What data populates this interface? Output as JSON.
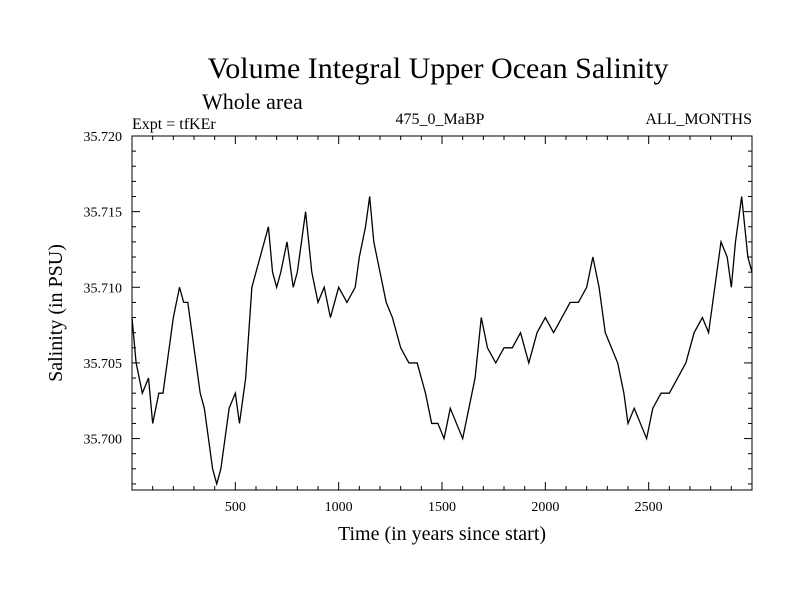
{
  "chart_data": {
    "type": "line",
    "title": "Volume Integral Upper Ocean Salinity",
    "subtitle": "Whole area",
    "experiment_label": "Expt = tfKEr",
    "center_label": "475_0_MaBP",
    "right_label": "ALL_MONTHS",
    "xlabel": "Time (in years since start)",
    "ylabel": "Salinity (in PSU)",
    "xlim": [
      0,
      3000
    ],
    "ylim": [
      35.6966,
      35.72
    ],
    "x_ticks": [
      500,
      1000,
      1500,
      2000,
      2500
    ],
    "x_tick_labels": [
      "500",
      "1000",
      "1500",
      "2000",
      "2500"
    ],
    "y_ticks": [
      35.7,
      35.705,
      35.71,
      35.715,
      35.72
    ],
    "y_tick_labels": [
      "35.700",
      "35.705",
      "35.710",
      "35.715",
      "35.720"
    ],
    "grid": false,
    "line_color": "#000000",
    "series": [
      {
        "x": [
          0,
          20,
          50,
          80,
          100,
          130,
          150,
          180,
          200,
          230,
          250,
          270,
          300,
          330,
          350,
          370,
          390,
          410,
          430,
          450,
          470,
          500,
          520,
          550,
          580,
          600,
          620,
          640,
          660,
          680,
          700,
          720,
          750,
          780,
          800,
          820,
          840,
          870,
          900,
          930,
          960,
          1000,
          1040,
          1080,
          1100,
          1130,
          1150,
          1170,
          1200,
          1230,
          1260,
          1300,
          1340,
          1380,
          1420,
          1450,
          1480,
          1510,
          1540,
          1570,
          1600,
          1630,
          1660,
          1690,
          1720,
          1760,
          1800,
          1840,
          1880,
          1920,
          1960,
          2000,
          2040,
          2080,
          2120,
          2160,
          2200,
          2230,
          2260,
          2290,
          2320,
          2350,
          2380,
          2400,
          2430,
          2460,
          2490,
          2520,
          2560,
          2600,
          2640,
          2680,
          2720,
          2760,
          2790,
          2820,
          2850,
          2880,
          2900,
          2920,
          2950,
          2980,
          3000
        ],
        "values": [
          35.708,
          35.705,
          35.703,
          35.704,
          35.701,
          35.703,
          35.703,
          35.706,
          35.708,
          35.71,
          35.709,
          35.709,
          35.706,
          35.703,
          35.702,
          35.7,
          35.698,
          35.697,
          35.698,
          35.7,
          35.702,
          35.703,
          35.701,
          35.704,
          35.71,
          35.711,
          35.712,
          35.713,
          35.714,
          35.711,
          35.71,
          35.711,
          35.713,
          35.71,
          35.711,
          35.713,
          35.715,
          35.711,
          35.709,
          35.71,
          35.708,
          35.71,
          35.709,
          35.71,
          35.712,
          35.714,
          35.716,
          35.713,
          35.711,
          35.709,
          35.708,
          35.706,
          35.705,
          35.705,
          35.703,
          35.701,
          35.701,
          35.7,
          35.702,
          35.701,
          35.7,
          35.702,
          35.704,
          35.708,
          35.706,
          35.705,
          35.706,
          35.706,
          35.707,
          35.705,
          35.707,
          35.708,
          35.707,
          35.708,
          35.709,
          35.709,
          35.71,
          35.712,
          35.71,
          35.707,
          35.706,
          35.705,
          35.703,
          35.701,
          35.702,
          35.701,
          35.7,
          35.702,
          35.703,
          35.703,
          35.704,
          35.705,
          35.707,
          35.708,
          35.707,
          35.71,
          35.713,
          35.712,
          35.71,
          35.713,
          35.716,
          35.712,
          35.711
        ]
      }
    ]
  }
}
